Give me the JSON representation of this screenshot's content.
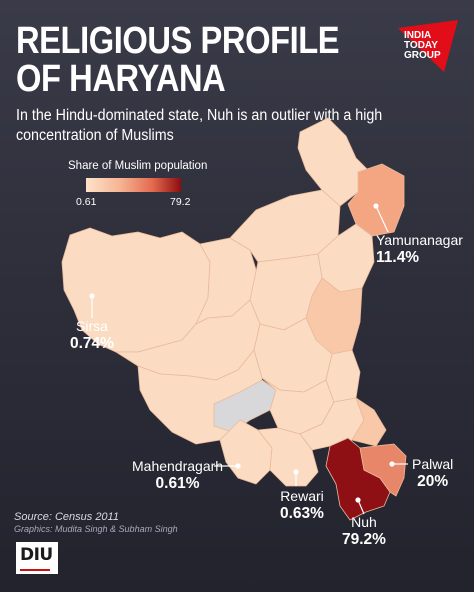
{
  "title": {
    "line1": "RELIGIOUS PROFILE",
    "line2": "OF HARYANA"
  },
  "subtitle": "In the Hindu-dominated state, Nuh is an outlier with a high concentration of Muslims",
  "brand": {
    "line1": "INDIA",
    "line2": "TODAY",
    "line3": "GROUP",
    "badge_color": "#e10e19",
    "icon": "india-today-logo"
  },
  "legend": {
    "title": "Share of Muslim population",
    "min": "0.61",
    "max": "79.2",
    "colors": [
      "#fde2c9",
      "#f6b694",
      "#e36a4f",
      "#8e0d10"
    ]
  },
  "districts": [
    {
      "name": "Yamunanagar",
      "value": "11.4%"
    },
    {
      "name": "Sirsa",
      "value": "0.74%"
    },
    {
      "name": "Mahendragarh",
      "value": "0.61%"
    },
    {
      "name": "Rewari",
      "value": "0.63%"
    },
    {
      "name": "Nuh",
      "value": "79.2%"
    },
    {
      "name": "Palwal",
      "value": "20%"
    }
  ],
  "colors": {
    "base_fill": "#fbdcc2",
    "light_fill": "#f8c8a8",
    "mid_fill": "#f4a682",
    "high_fill": "#e8866a",
    "nuh_fill": "#8e1014",
    "nodata_fill": "#d8d8da"
  },
  "source": "Source: Census 2011",
  "credit": "Graphics: Mudita Singh & Subham Singh",
  "footer_logo": "DIU"
}
